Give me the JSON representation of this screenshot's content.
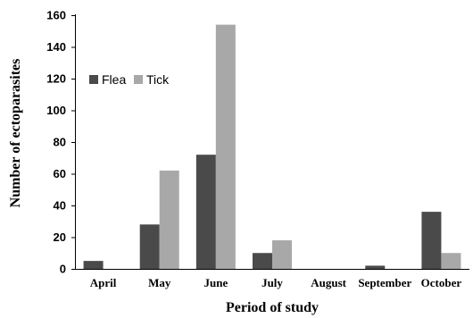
{
  "chart_data": {
    "type": "bar",
    "title": "",
    "xlabel": "Period of study",
    "ylabel": "Number of ectoparasites",
    "ylim": [
      0,
      160
    ],
    "yticks": [
      "0",
      "20",
      "40",
      "60",
      "80",
      "100",
      "120",
      "140",
      "160"
    ],
    "categories": [
      "April",
      "May",
      "June",
      "July",
      "August",
      "September",
      "October"
    ],
    "series": [
      {
        "name": "Flea",
        "color": "#4a4a4a",
        "values": [
          5,
          28,
          72,
          10,
          0,
          2,
          36
        ]
      },
      {
        "name": "Tick",
        "color": "#a8a8a8",
        "values": [
          0,
          62,
          154,
          18,
          0,
          0,
          10
        ]
      }
    ],
    "grid": false,
    "legend_position": "top-left"
  }
}
